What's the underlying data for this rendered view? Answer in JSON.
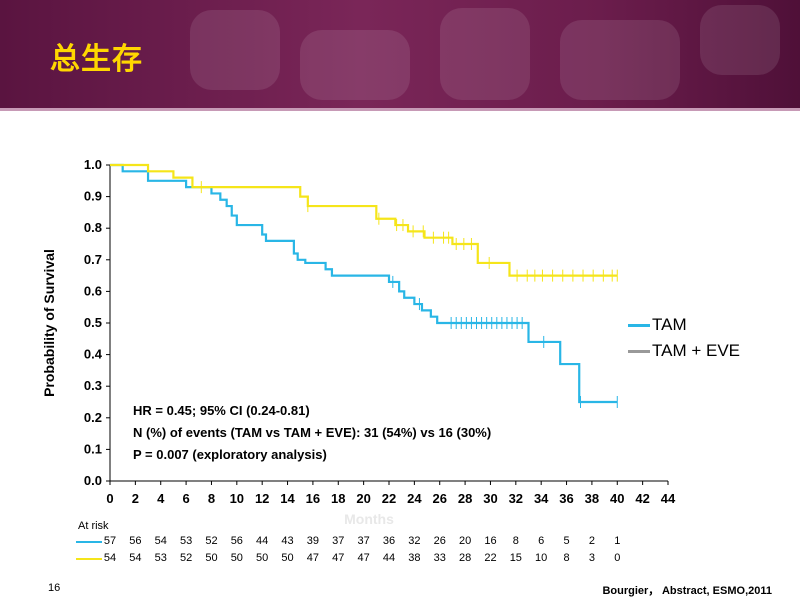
{
  "slide": {
    "title": "总生存",
    "page_number": "16",
    "source": "Bourgier， Abstract, ESMO,2011"
  },
  "colors": {
    "tam": "#29b6e6",
    "tam_eve": "#f5e51a",
    "header": "#6b1d4c",
    "title": "#ffd700"
  },
  "annotations": {
    "line1": "HR = 0.45; 95% CI (0.24-0.81)",
    "line2": "N (%) of events (TAM vs TAM + EVE): 31 (54%) vs 16 (30%)",
    "line3": "P = 0.007 (exploratory analysis)"
  },
  "at_risk": {
    "label": "At risk",
    "tam": [
      "57",
      "56",
      "54",
      "53",
      "52",
      "56",
      "44",
      "43",
      "39",
      "37",
      "37",
      "36",
      "32",
      "26",
      "20",
      "16",
      "8",
      "6",
      "5",
      "2",
      "1"
    ],
    "tam_eve": [
      "54",
      "54",
      "53",
      "52",
      "50",
      "50",
      "50",
      "50",
      "47",
      "47",
      "47",
      "44",
      "38",
      "33",
      "28",
      "22",
      "15",
      "10",
      "8",
      "3",
      "0"
    ]
  },
  "chart_data": {
    "type": "line",
    "title": "",
    "xlabel": "Months",
    "ylabel": "Probability of Survival",
    "xlim": [
      0,
      44
    ],
    "ylim": [
      0,
      1
    ],
    "x_ticks": [
      "0",
      "2",
      "4",
      "6",
      "8",
      "10",
      "12",
      "14",
      "16",
      "18",
      "20",
      "22",
      "24",
      "26",
      "28",
      "30",
      "32",
      "34",
      "36",
      "38",
      "40",
      "42",
      "44"
    ],
    "y_ticks": [
      "0.0",
      "0.1",
      "0.2",
      "0.3",
      "0.4",
      "0.5",
      "0.6",
      "0.7",
      "0.8",
      "0.9",
      "1.0"
    ],
    "legend": [
      "TAM",
      "TAM + EVE"
    ],
    "series": [
      {
        "name": "TAM",
        "step": [
          [
            0,
            1.0
          ],
          [
            1,
            0.98
          ],
          [
            3,
            0.95
          ],
          [
            6,
            0.93
          ],
          [
            8,
            0.91
          ],
          [
            8.7,
            0.89
          ],
          [
            9.2,
            0.87
          ],
          [
            9.6,
            0.84
          ],
          [
            10,
            0.81
          ],
          [
            12,
            0.78
          ],
          [
            12.3,
            0.76
          ],
          [
            14.5,
            0.72
          ],
          [
            14.8,
            0.7
          ],
          [
            15.4,
            0.69
          ],
          [
            17,
            0.67
          ],
          [
            17.5,
            0.65
          ],
          [
            22,
            0.63
          ],
          [
            22.8,
            0.6
          ],
          [
            23.2,
            0.58
          ],
          [
            24,
            0.56
          ],
          [
            24.6,
            0.54
          ],
          [
            25.3,
            0.52
          ],
          [
            25.8,
            0.5
          ],
          [
            33,
            0.44
          ],
          [
            35.5,
            0.37
          ],
          [
            37,
            0.25
          ],
          [
            40,
            0.25
          ]
        ],
        "censor": [
          22.3,
          24.4,
          26.9,
          27.3,
          27.7,
          28.1,
          28.5,
          28.9,
          29.3,
          29.7,
          30.1,
          30.5,
          30.9,
          31.3,
          31.7,
          32.1,
          32.5,
          34.2,
          37.1,
          40
        ]
      },
      {
        "name": "TAM + EVE",
        "step": [
          [
            0,
            1.0
          ],
          [
            3,
            0.98
          ],
          [
            5,
            0.96
          ],
          [
            6.5,
            0.93
          ],
          [
            7,
            0.93
          ],
          [
            15,
            0.9
          ],
          [
            15.6,
            0.87
          ],
          [
            21,
            0.83
          ],
          [
            22.5,
            0.81
          ],
          [
            23.5,
            0.79
          ],
          [
            24.8,
            0.77
          ],
          [
            27,
            0.75
          ],
          [
            29,
            0.69
          ],
          [
            31.5,
            0.65
          ],
          [
            40,
            0.65
          ]
        ],
        "censor": [
          7.2,
          15.6,
          21.2,
          22.6,
          23.1,
          23.9,
          24.7,
          25.5,
          26.3,
          26.7,
          27.3,
          27.9,
          28.5,
          29.9,
          32.1,
          32.9,
          33.5,
          34.1,
          34.9,
          35.7,
          36.5,
          37.3,
          38.1,
          38.9,
          39.6,
          40
        ]
      }
    ]
  }
}
